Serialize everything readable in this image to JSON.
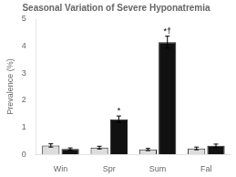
{
  "chart_data": {
    "type": "bar",
    "title": "Seasonal Variation of Severe Hyponatremia",
    "ylabel": "Prevalence (%)",
    "categories": [
      "Win",
      "Spr",
      "Sum",
      "Fal"
    ],
    "series": [
      {
        "color": "#dddddd",
        "values": [
          0.33,
          0.25,
          0.18,
          0.22
        ],
        "errors": [
          0.06,
          0.05,
          0.04,
          0.05
        ]
      },
      {
        "color": "#111111",
        "values": [
          0.2,
          1.3,
          4.15,
          0.32
        ],
        "errors": [
          0.04,
          0.12,
          0.22,
          0.06
        ],
        "annotations": [
          null,
          "*",
          "*†",
          null
        ]
      }
    ],
    "ylim": [
      0,
      5
    ],
    "yticks": [
      0,
      1,
      2,
      3,
      4,
      5
    ],
    "grid": false
  }
}
